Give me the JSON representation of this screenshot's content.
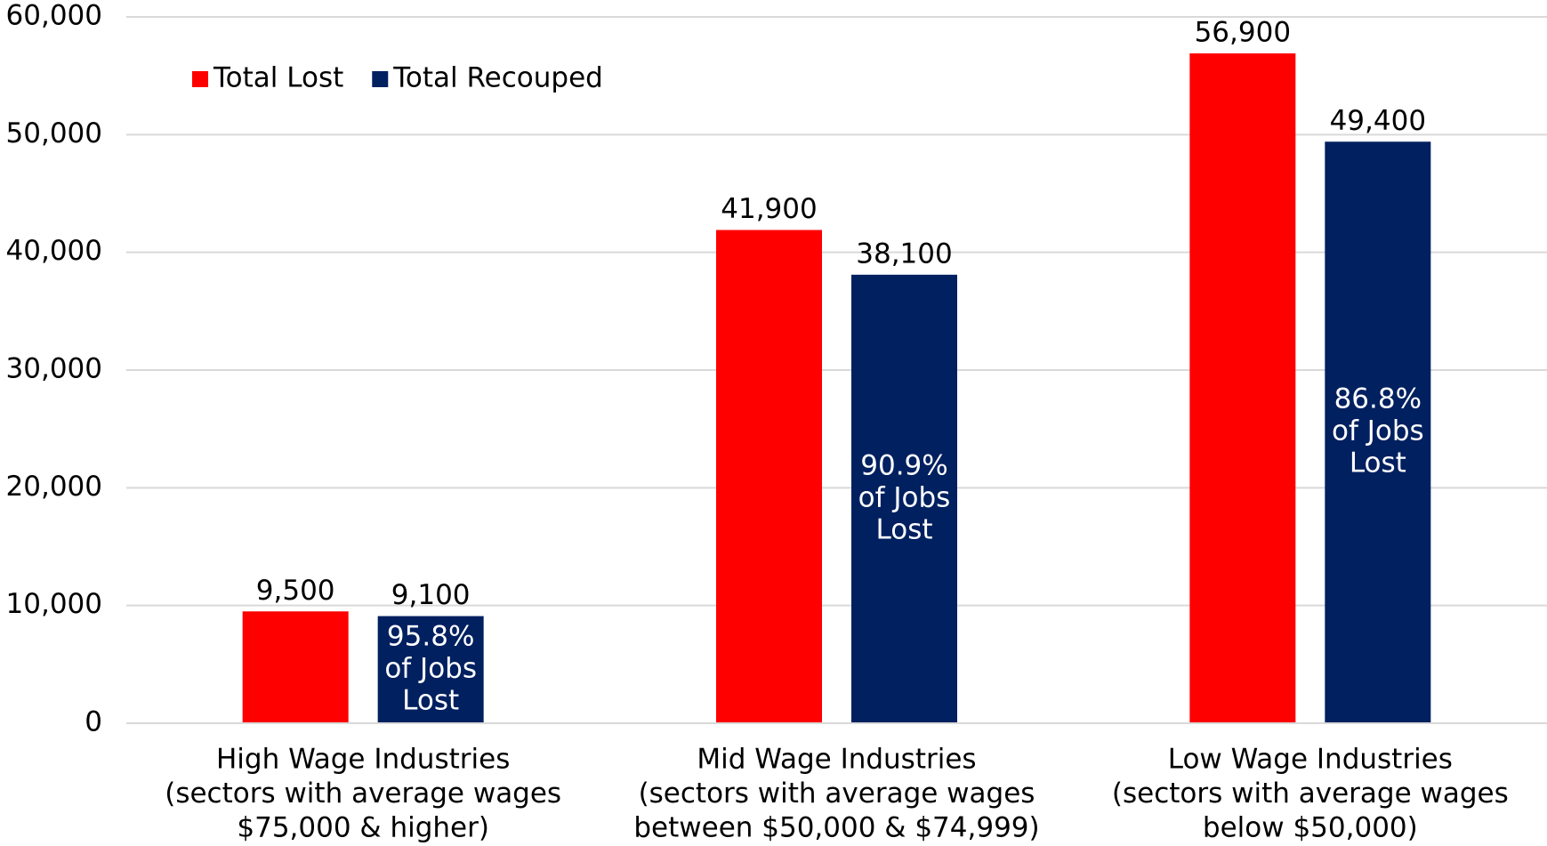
{
  "chart_data": {
    "type": "bar",
    "categories": [
      [
        "High Wage Industries",
        "(sectors with average wages",
        "$75,000 & higher)"
      ],
      [
        "Mid Wage Industries",
        "(sectors with average wages",
        "between $50,000 & $74,999)"
      ],
      [
        "Low Wage Industries",
        "(sectors with average wages",
        "below $50,000)"
      ]
    ],
    "series": [
      {
        "name": "Total Lost",
        "color": "#ff0000",
        "values": [
          9500,
          41900,
          56900
        ],
        "value_labels": [
          "9,500",
          "41,900",
          "56,900"
        ]
      },
      {
        "name": "Total Recouped",
        "color": "#002060",
        "values": [
          9100,
          38100,
          49400
        ],
        "value_labels": [
          "9,100",
          "38,100",
          "49,400"
        ]
      }
    ],
    "annotations": [
      [
        "95.8%",
        "of Jobs",
        "Lost"
      ],
      [
        "90.9%",
        "of Jobs",
        "Lost"
      ],
      [
        "86.8%",
        "of Jobs",
        "Lost"
      ]
    ],
    "ylim": [
      0,
      60000
    ],
    "yticks": [
      0,
      {
        "value": 10000,
        "label": "10,000"
      },
      {
        "value": 20000,
        "label": "20,000"
      },
      {
        "value": 30000,
        "label": "30,000"
      },
      {
        "value": 40000,
        "label": "40,000"
      },
      {
        "value": 50000,
        "label": "50,000"
      },
      {
        "value": 60000,
        "label": "60,000"
      }
    ],
    "grid": true,
    "legend": "top-left"
  }
}
